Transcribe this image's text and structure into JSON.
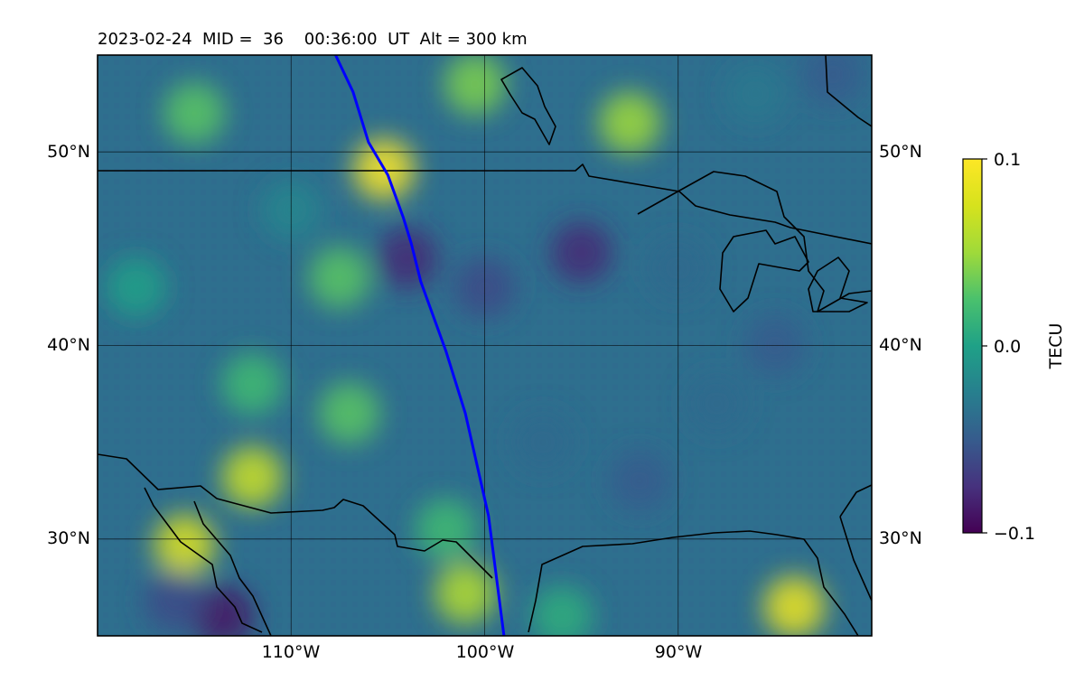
{
  "title": "2023-02-24  MID =  36    00:36:00  UT  Alt = 300 km",
  "map": {
    "lat_range": [
      25,
      55
    ],
    "lon_range": [
      -120,
      -80
    ],
    "lat_gridlines": [
      30,
      40,
      50
    ],
    "lon_gridlines": [
      -110,
      -100,
      -90
    ],
    "lat_labels": [
      "30°N",
      "40°N",
      "50°N"
    ],
    "lon_labels": [
      "110°W",
      "100°W",
      "90°W"
    ],
    "track_color": "#0000ff",
    "track": [
      [
        -107.7,
        55
      ],
      [
        -106.8,
        53.1
      ],
      [
        -106,
        50.5
      ],
      [
        -105,
        48.8
      ],
      [
        -104.2,
        46.6
      ],
      [
        -103.8,
        45.3
      ],
      [
        -103.3,
        43.3
      ],
      [
        -102,
        39.7
      ],
      [
        -101,
        36.5
      ],
      [
        -99.8,
        31.2
      ],
      [
        -99.0,
        25
      ]
    ]
  },
  "heatmap": {
    "colormap": "viridis",
    "patches": [
      {
        "lon": -115,
        "lat": 52,
        "value": 0.03
      },
      {
        "lon": -107.5,
        "lat": 43.5,
        "value": 0.03
      },
      {
        "lon": -112,
        "lat": 38,
        "value": 0.02
      },
      {
        "lon": -101,
        "lat": 27.2,
        "value": 0.06
      },
      {
        "lon": -115.5,
        "lat": 29.7,
        "value": 0.08
      },
      {
        "lon": -107,
        "lat": 36.5,
        "value": 0.03
      },
      {
        "lon": -95,
        "lat": 44.8,
        "value": -0.08
      },
      {
        "lon": -104,
        "lat": 44.5,
        "value": -0.08
      },
      {
        "lon": -113.5,
        "lat": 26,
        "value": -0.09
      },
      {
        "lon": -100,
        "lat": 43,
        "value": -0.06
      },
      {
        "lon": -85,
        "lat": 40,
        "value": -0.05
      },
      {
        "lon": -88,
        "lat": 37,
        "value": -0.04
      },
      {
        "lon": -92,
        "lat": 33,
        "value": -0.05
      },
      {
        "lon": -116,
        "lat": 26.8,
        "value": -0.06
      },
      {
        "lon": -102,
        "lat": 30.5,
        "value": 0.02
      },
      {
        "lon": -92.5,
        "lat": 51.5,
        "value": 0.05
      },
      {
        "lon": -105.2,
        "lat": 49.1,
        "value": 0.1
      },
      {
        "lon": -84,
        "lat": 26.5,
        "value": 0.09
      },
      {
        "lon": -112,
        "lat": 33.2,
        "value": 0.07
      },
      {
        "lon": -100.5,
        "lat": 53.5,
        "value": 0.04
      },
      {
        "lon": -86,
        "lat": 53,
        "value": -0.03
      },
      {
        "lon": -82,
        "lat": 54,
        "value": -0.05
      },
      {
        "lon": -110,
        "lat": 47,
        "value": -0.02
      },
      {
        "lon": -97,
        "lat": 35,
        "value": -0.04
      },
      {
        "lon": -90,
        "lat": 44,
        "value": -0.04
      },
      {
        "lon": -118,
        "lat": 43,
        "value": 0.0
      },
      {
        "lon": -96,
        "lat": 26,
        "value": 0.01
      }
    ]
  },
  "colorbar": {
    "label": "TECU",
    "ticks": [
      {
        "value": 0.1,
        "label": "0.1"
      },
      {
        "value": 0.0,
        "label": "0.0"
      },
      {
        "value": -0.1,
        "label": "−0.1"
      }
    ],
    "min": -0.1,
    "max": 0.1
  }
}
